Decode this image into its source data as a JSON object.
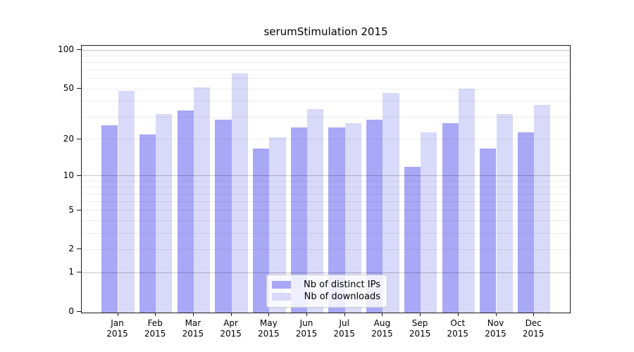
{
  "title": "serumStimulation 2015",
  "chart_data": {
    "type": "bar",
    "title": "serumStimulation 2015",
    "categories": [
      "Jan",
      "Feb",
      "Mar",
      "Apr",
      "May",
      "Jun",
      "Jul",
      "Aug",
      "Sep",
      "Oct",
      "Nov",
      "Dec"
    ],
    "x_year_label": "2015",
    "series": [
      {
        "name": "Nb of distinct IPs",
        "color": "#a8a8f6",
        "values": [
          26,
          22,
          34,
          29,
          17,
          25,
          25,
          29,
          12,
          27,
          17,
          23
        ]
      },
      {
        "name": "Nb of downloads",
        "color": "#d9d9f9",
        "values": [
          49,
          32,
          52,
          67,
          21,
          35,
          27,
          47,
          23,
          51,
          32,
          38
        ]
      }
    ],
    "xlabel": "",
    "ylabel": "",
    "yscale": "symlog-log1p",
    "ylim": [
      0,
      108
    ],
    "y_ticks": [
      0,
      1,
      2,
      5,
      10,
      20,
      50,
      100
    ],
    "y_major_gridlines": [
      1,
      10,
      100
    ],
    "y_minor_gridlines": [
      2,
      3,
      4,
      5,
      6,
      7,
      8,
      9,
      20,
      30,
      40,
      50,
      60,
      70,
      80,
      90
    ],
    "grid": true,
    "legend_position": "lower center"
  },
  "colors": {
    "grid_minor": "rgba(0,0,0,0.07)",
    "grid_major": "rgba(0,0,0,0.22)",
    "spine": "#1a1a1a",
    "text": "#000000"
  }
}
